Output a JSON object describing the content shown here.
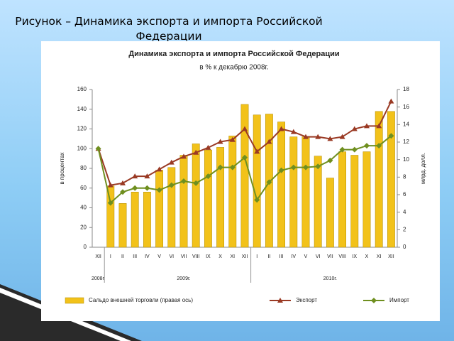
{
  "slide_title": "Рисунок  – Динамика экспорта и импорта Российской Федерации",
  "chart_data": {
    "type": "bar-line",
    "title": "Динамика экспорта и импорта Российской Федерации",
    "subtitle": "в % к декабрю 2008г.",
    "y_label": "в процентах",
    "y2_label": "млрд. долл.",
    "categories": [
      "XII",
      "I",
      "II",
      "III",
      "IV",
      "V",
      "VI",
      "VII",
      "VIII",
      "IX",
      "X",
      "XI",
      "XII",
      "I",
      "II",
      "III",
      "IV",
      "V",
      "VI",
      "VII",
      "VIII",
      "IX",
      "X",
      "XI",
      "XII"
    ],
    "years": [
      "2008г.",
      "2009г.",
      "2010г."
    ],
    "ylim": [
      0,
      160
    ],
    "yticks": [
      0,
      20,
      40,
      60,
      80,
      100,
      120,
      140,
      160
    ],
    "y2lim": [
      0,
      18
    ],
    "y2ticks": [
      0,
      2,
      4,
      6,
      8,
      10,
      12,
      14,
      16,
      18
    ],
    "series": [
      {
        "name": "Сальдо внешней торговли (правая ось)",
        "type": "bar",
        "axis": "y2",
        "color": "#f2c21a",
        "values": [
          null,
          7.0,
          5.0,
          6.3,
          6.3,
          8.8,
          9.1,
          10.5,
          11.8,
          11.1,
          11.4,
          12.7,
          16.3,
          15.1,
          15.2,
          14.3,
          12.6,
          12.6,
          10.4,
          7.9,
          10.9,
          10.5,
          10.9,
          15.5,
          15.5
        ]
      },
      {
        "name": "Экспорт",
        "type": "line",
        "marker": "triangle",
        "color": "#9a3a24",
        "values": [
          100,
          63,
          65,
          72,
          72,
          79,
          86,
          92,
          96,
          101,
          107,
          109,
          120,
          97,
          107,
          120,
          117,
          112,
          112,
          110,
          112,
          120,
          123,
          123,
          148
        ]
      },
      {
        "name": "Импорт",
        "type": "line",
        "marker": "diamond",
        "color": "#6f8f1f",
        "values": [
          100,
          45,
          56,
          60,
          60,
          58,
          63,
          67,
          65,
          72,
          81,
          81,
          91,
          48,
          66,
          78,
          81,
          81,
          82,
          88,
          99,
          99,
          103,
          103,
          113
        ]
      }
    ]
  }
}
